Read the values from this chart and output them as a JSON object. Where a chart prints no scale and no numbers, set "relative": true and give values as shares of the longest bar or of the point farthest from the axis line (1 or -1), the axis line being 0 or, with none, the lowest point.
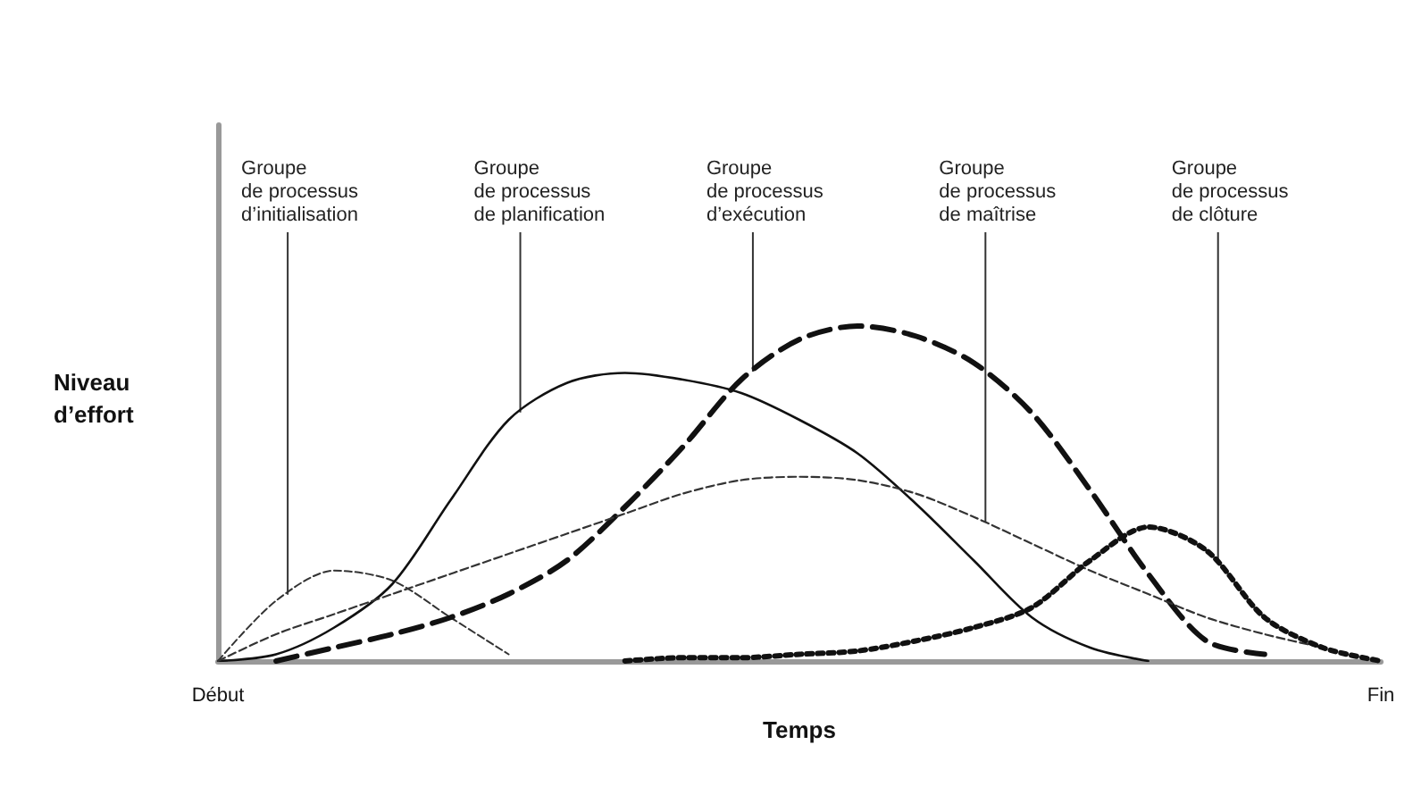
{
  "chart_data": {
    "type": "line",
    "relative": true,
    "xlabel": "Temps",
    "ylabel": "Niveau\nd’effort",
    "categories": [
      "Début",
      null,
      null,
      null,
      null,
      null,
      null,
      null,
      null,
      null,
      null,
      null,
      null,
      null,
      null,
      null,
      null,
      null,
      null,
      null,
      "Fin"
    ],
    "grid": false,
    "marker": "none",
    "series": [
      {
        "name": "Groupe\nde processus\nd’initialisation",
        "color": "#333333",
        "line_style": "dashed",
        "values": [
          0,
          0.18,
          0.27,
          0.24,
          0.13,
          0.02,
          null,
          null,
          null,
          null,
          null,
          null,
          null,
          null,
          null,
          null,
          null,
          null,
          null,
          null,
          null
        ]
      },
      {
        "name": "Groupe\nde processus\nde planification",
        "color": "#111111",
        "line_style": "solid",
        "values": [
          0,
          0.02,
          0.1,
          0.23,
          0.48,
          0.72,
          0.83,
          0.86,
          0.84,
          0.8,
          0.72,
          0.62,
          0.47,
          0.3,
          0.13,
          0.04,
          0,
          null,
          null,
          null,
          null
        ]
      },
      {
        "name": "Groupe\nde processus\nd’exécution",
        "color": "#111111",
        "line_style": "dashed",
        "values": [
          null,
          0,
          0.04,
          0.08,
          0.13,
          0.2,
          0.3,
          0.46,
          0.64,
          0.84,
          0.96,
          1,
          0.97,
          0.89,
          0.74,
          0.51,
          0.26,
          0.06,
          0.02,
          null,
          null
        ]
      },
      {
        "name": "Groupe\nde processus\nde maîtrise",
        "color": "#333333",
        "line_style": "dashed",
        "values": [
          0,
          0.08,
          0.14,
          0.2,
          0.26,
          0.32,
          0.38,
          0.44,
          0.5,
          0.54,
          0.55,
          0.54,
          0.5,
          0.43,
          0.35,
          0.27,
          0.2,
          0.13,
          0.08,
          0.04,
          null
        ]
      },
      {
        "name": "Groupe\nde processus\nde clôture",
        "color": "#111111",
        "line_style": "dotted",
        "values": [
          null,
          null,
          null,
          null,
          null,
          null,
          null,
          0,
          0.01,
          0.01,
          0.02,
          0.03,
          0.06,
          0.1,
          0.16,
          0.3,
          0.4,
          0.33,
          0.13,
          0.04,
          0
        ]
      }
    ]
  }
}
